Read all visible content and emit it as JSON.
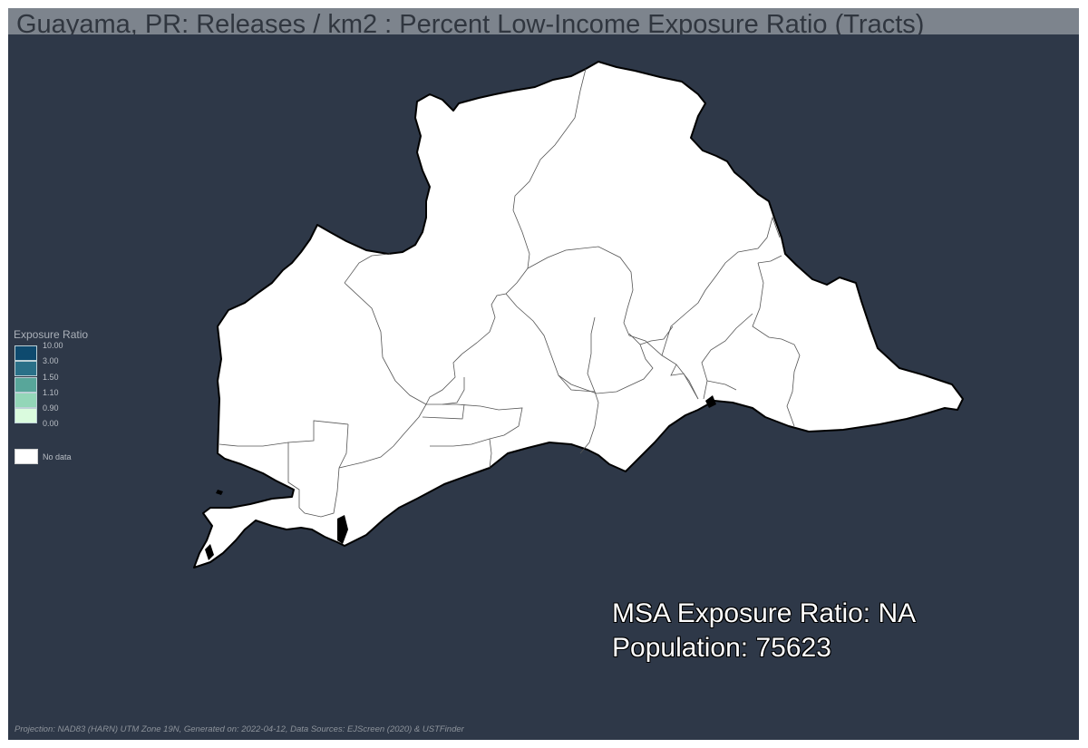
{
  "map": {
    "title": "Guayama, PR: Releases / km2 : Percent Low-Income Exposure Ratio (Tracts)",
    "background_color": "#2e3848",
    "region_fill": "#ffffff",
    "region_outline": "#000000"
  },
  "legend": {
    "title": "Exposure Ratio",
    "items": [
      {
        "label": "10.00",
        "color": "#0e4a6e"
      },
      {
        "label": "3.00",
        "color": "#2a7088"
      },
      {
        "label": "1.50",
        "color": "#58a69a"
      },
      {
        "label": "1.10",
        "color": "#93d6b8"
      },
      {
        "label": "0.90",
        "color": "#dafbde"
      },
      {
        "label": "0.00",
        "color": ""
      }
    ],
    "nodata_label": "No data"
  },
  "stats": {
    "msa_ratio": "MSA Exposure Ratio: NA",
    "population": "Population: 75623"
  },
  "footer": "Projection: NAD83 (HARN) UTM Zone 19N, Generated on: 2022-04-12, Data Sources: EJScreen (2020) & USTFinder"
}
